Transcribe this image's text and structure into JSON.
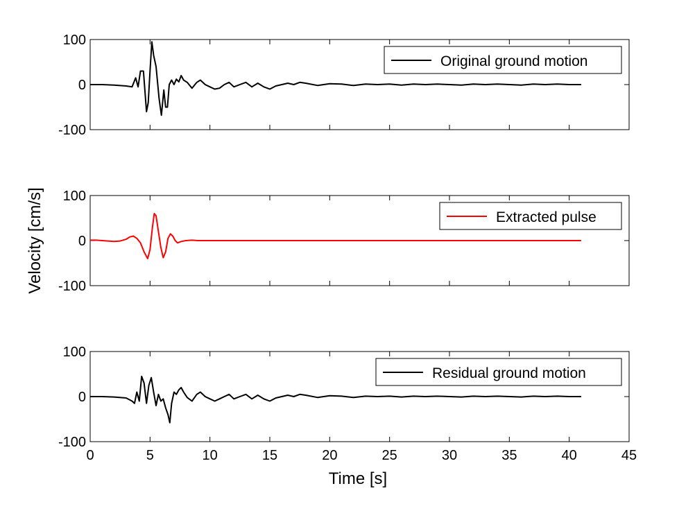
{
  "chart_data": [
    {
      "type": "line",
      "xlim": [
        0,
        45
      ],
      "ylim": [
        -100,
        100
      ],
      "yticks": [
        "-100",
        "0",
        "100"
      ],
      "legend": "top-right",
      "series": [
        {
          "name": "Original ground motion",
          "color": "#000000",
          "x": [
            0,
            1,
            2,
            3,
            3.5,
            3.8,
            4.0,
            4.2,
            4.45,
            4.7,
            4.85,
            5.0,
            5.15,
            5.3,
            5.5,
            5.75,
            5.95,
            6.15,
            6.3,
            6.45,
            6.6,
            6.8,
            7.0,
            7.2,
            7.4,
            7.6,
            7.8,
            8.1,
            8.5,
            8.9,
            9.2,
            9.6,
            10.0,
            10.4,
            10.8,
            11.2,
            11.6,
            12.0,
            12.5,
            13.0,
            13.5,
            14.0,
            14.5,
            15.0,
            15.5,
            16.0,
            16.5,
            17.0,
            17.5,
            18.0,
            19.0,
            20.0,
            21.0,
            22.0,
            23.0,
            24.0,
            25.0,
            26.0,
            27.0,
            28.0,
            29.0,
            30.0,
            31.0,
            32.0,
            33.0,
            34.0,
            35.0,
            36.0,
            37.0,
            38.0,
            39.0,
            40.0,
            41.0
          ],
          "y": [
            0,
            0,
            -1,
            -3,
            -5,
            15,
            -5,
            30,
            30,
            -60,
            -40,
            30,
            95,
            65,
            40,
            -30,
            -68,
            -12,
            -50,
            -50,
            0,
            10,
            0,
            12,
            6,
            20,
            10,
            5,
            -8,
            5,
            10,
            0,
            -5,
            -10,
            -8,
            0,
            5,
            -5,
            0,
            5,
            -5,
            3,
            -5,
            -10,
            -3,
            0,
            3,
            0,
            5,
            3,
            -2,
            2,
            1,
            -2,
            1,
            0,
            1,
            -1,
            1,
            0,
            1,
            0,
            -1,
            1,
            0,
            1,
            0,
            -1,
            1,
            0,
            1,
            0,
            0
          ]
        },
        {
          "name": "Extracted pulse",
          "color": "#ff0000",
          "x": [
            0,
            0.5,
            1,
            1.5,
            2,
            2.5,
            3,
            3.3,
            3.6,
            3.9,
            4.2,
            4.5,
            4.8,
            5.0,
            5.2,
            5.35,
            5.5,
            5.7,
            5.9,
            6.1,
            6.3,
            6.5,
            6.7,
            6.9,
            7.1,
            7.3,
            7.6,
            8.0,
            8.5,
            9.0,
            10.0,
            15.0,
            20.0,
            25.0,
            30.0,
            35.0,
            41.0
          ],
          "y": [
            1,
            1,
            0,
            -1,
            -2,
            -1,
            3,
            8,
            10,
            5,
            -5,
            -25,
            -40,
            -20,
            30,
            60,
            55,
            20,
            -15,
            -38,
            -25,
            5,
            15,
            10,
            0,
            -5,
            -2,
            0,
            1,
            0,
            0,
            0,
            0,
            0,
            0,
            0,
            0
          ]
        },
        {
          "name": "Residual ground motion",
          "color": "#000000",
          "x": [
            0,
            1,
            2,
            3,
            3.5,
            3.7,
            3.9,
            4.1,
            4.3,
            4.5,
            4.7,
            4.9,
            5.1,
            5.3,
            5.5,
            5.7,
            5.9,
            6.1,
            6.3,
            6.5,
            6.65,
            6.8,
            7.0,
            7.2,
            7.4,
            7.6,
            7.8,
            8.1,
            8.5,
            8.9,
            9.2,
            9.6,
            10.0,
            10.4,
            10.8,
            11.2,
            11.6,
            12.0,
            12.5,
            13.0,
            13.5,
            14.0,
            14.5,
            15.0,
            15.5,
            16.0,
            16.5,
            17.0,
            17.5,
            18.0,
            19.0,
            20.0,
            21.0,
            22.0,
            23.0,
            24.0,
            25.0,
            26.0,
            27.0,
            28.0,
            29.0,
            30.0,
            31.0,
            32.0,
            33.0,
            34.0,
            35.0,
            36.0,
            37.0,
            38.0,
            39.0,
            40.0,
            41.0
          ],
          "y": [
            0,
            0,
            -1,
            -3,
            -10,
            -15,
            10,
            -10,
            45,
            30,
            -15,
            25,
            42,
            10,
            -20,
            5,
            -10,
            -5,
            -25,
            -40,
            -58,
            -15,
            10,
            5,
            15,
            20,
            10,
            -2,
            -10,
            5,
            10,
            0,
            -5,
            -10,
            -5,
            0,
            5,
            -5,
            0,
            5,
            -5,
            3,
            -5,
            -10,
            -3,
            0,
            3,
            0,
            5,
            3,
            -2,
            2,
            1,
            -2,
            1,
            0,
            1,
            -1,
            1,
            0,
            1,
            0,
            -1,
            1,
            0,
            1,
            0,
            -1,
            1,
            0,
            1,
            0,
            0
          ]
        }
      ],
      "xticks": [
        "0",
        "5",
        "10",
        "15",
        "20",
        "25",
        "30",
        "35",
        "40",
        "45"
      ],
      "xlabel": "Time [s]",
      "ylabel": "Velocity [cm/s]"
    }
  ]
}
